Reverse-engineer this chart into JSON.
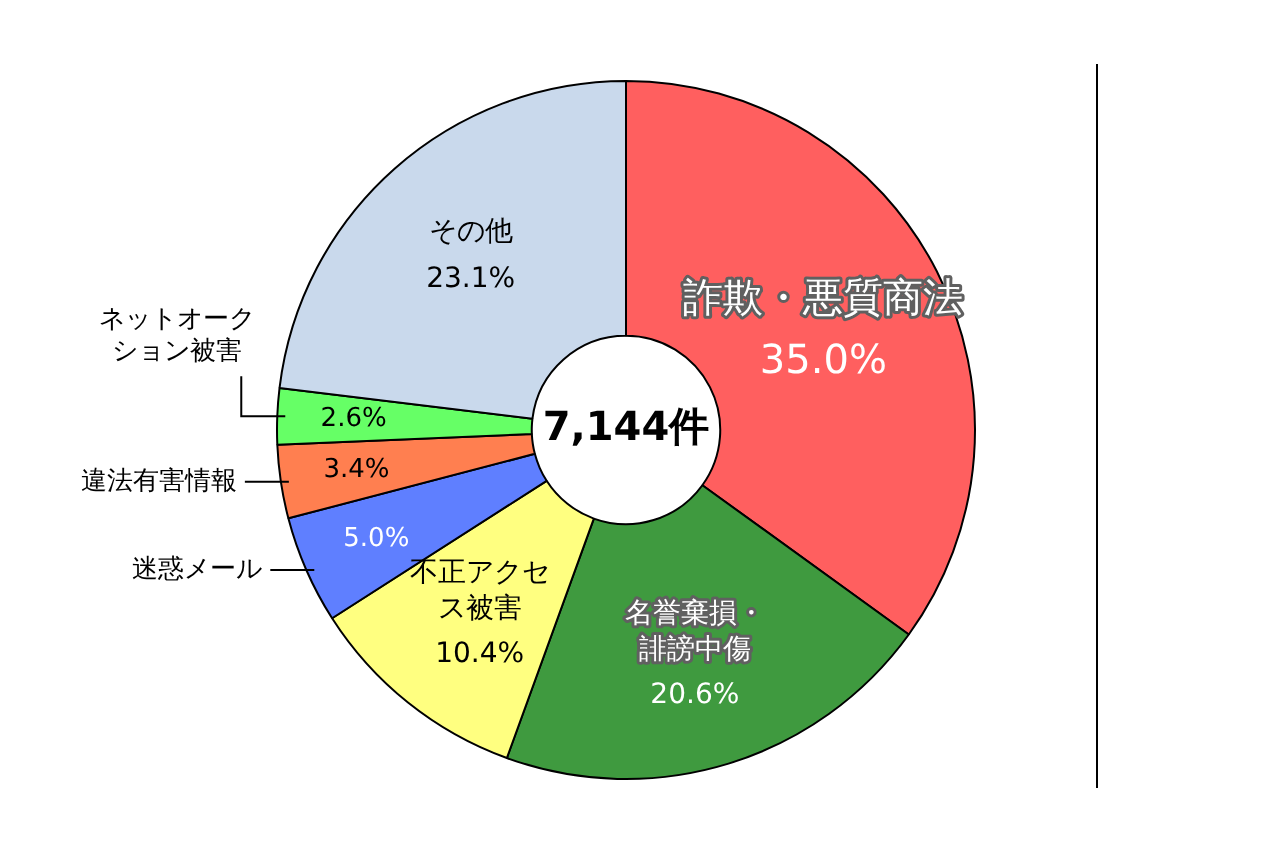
{
  "chart_data": {
    "type": "donut",
    "categories": [
      "詐欺・悪質商法",
      "名誉棄損・誹謗中傷",
      "不正アクセス被害",
      "迷惑メール",
      "違法有害情報",
      "ネットオークション被害",
      "その他"
    ],
    "values": [
      35.0,
      20.6,
      10.4,
      5.0,
      3.4,
      2.6,
      23.1
    ],
    "value_labels": [
      "35.0%",
      "20.6%",
      "10.4%",
      "5.0%",
      "3.4%",
      "2.6%",
      "23.1%"
    ],
    "colors": [
      "#ff5f5f",
      "#3f9a3f",
      "#ffff80",
      "#5f7fff",
      "#ff7f50",
      "#66ff66",
      "#c9d9ec"
    ],
    "annotations": [
      "7,144件"
    ],
    "legend": false
  }
}
